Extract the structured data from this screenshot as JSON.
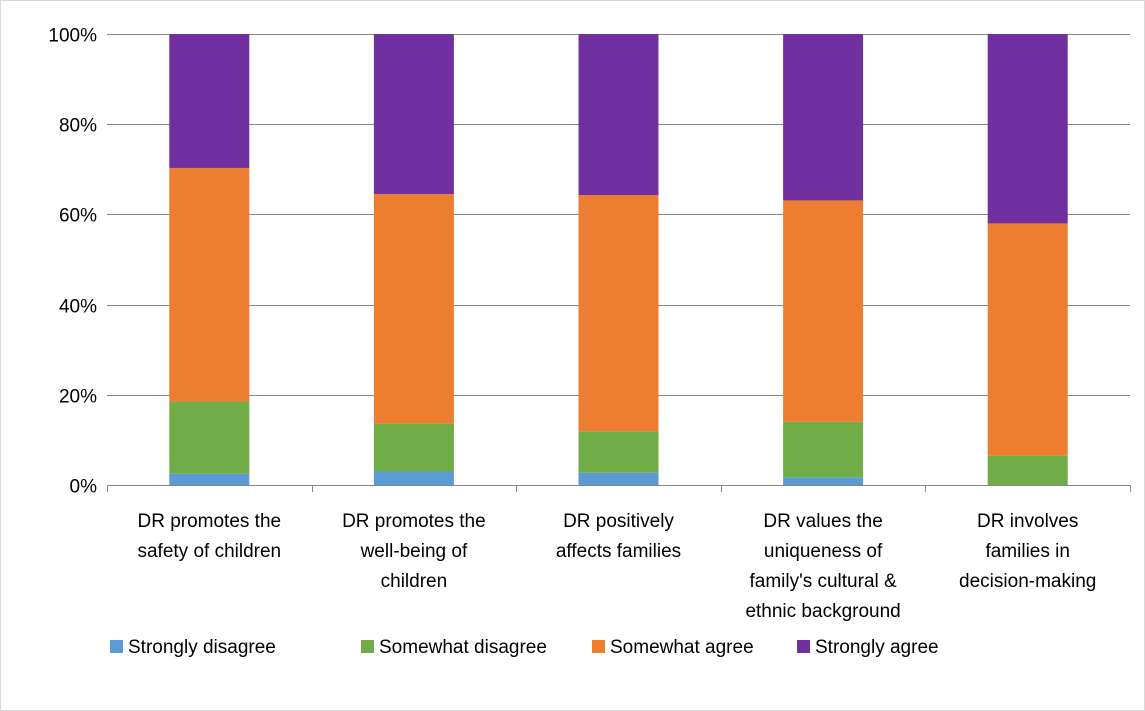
{
  "chart_data": {
    "type": "bar",
    "stacked": true,
    "categories": [
      [
        "DR promotes the",
        "safety of children"
      ],
      [
        "DR promotes the",
        "well-being of",
        "children"
      ],
      [
        "DR positively",
        "affects families"
      ],
      [
        "DR values the",
        "uniqueness of",
        "family's cultural &",
        "ethnic background"
      ],
      [
        "DR involves",
        "families in",
        "decision-making"
      ]
    ],
    "series": [
      {
        "name": "Strongly disagree",
        "color": "#5B9BD5",
        "values": [
          2.5,
          3.0,
          2.7,
          1.7,
          0.0
        ]
      },
      {
        "name": "Somewhat disagree",
        "color": "#70AD47",
        "values": [
          16.0,
          10.6,
          9.2,
          12.3,
          6.5
        ]
      },
      {
        "name": "Somewhat agree",
        "color": "#ED7D31",
        "values": [
          51.8,
          50.9,
          52.4,
          49.1,
          51.5
        ]
      },
      {
        "name": "Strongly agree",
        "color": "#7030A0",
        "values": [
          29.7,
          35.5,
          35.7,
          36.9,
          42.0
        ]
      }
    ],
    "ylim": [
      0,
      100
    ],
    "yticks": [
      "0%",
      "20%",
      "40%",
      "60%",
      "80%",
      "100%"
    ],
    "ytick_values": [
      0,
      20,
      40,
      60,
      80,
      100
    ],
    "grid": true,
    "legend_position": "bottom",
    "gridline_color": "#868686",
    "axis_color": "#868686"
  }
}
